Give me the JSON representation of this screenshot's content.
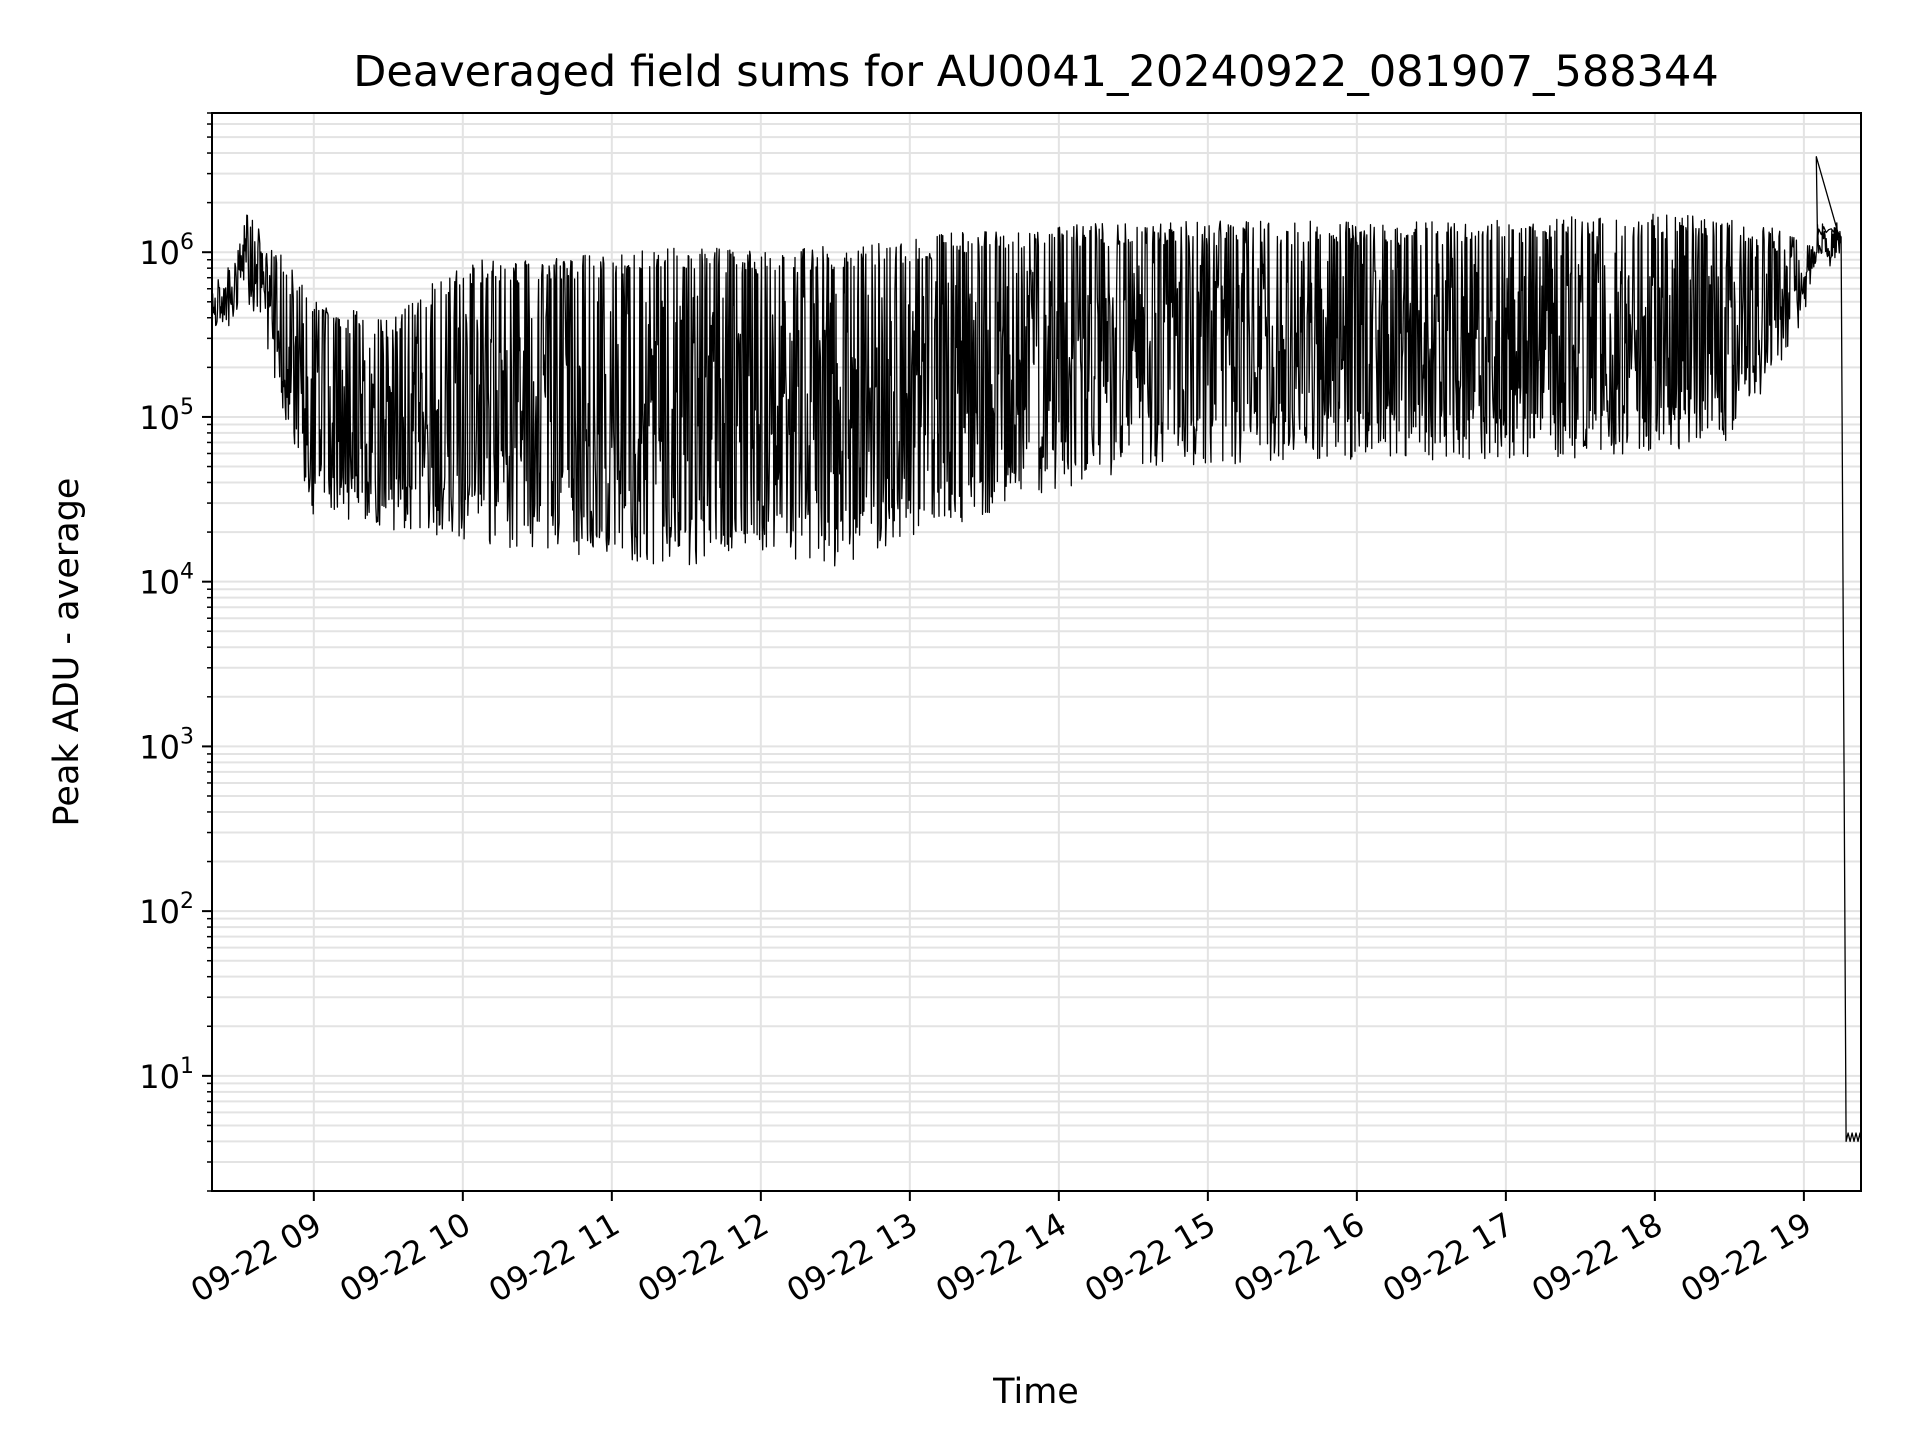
{
  "chart_data": {
    "type": "line",
    "title": "Deaveraged field sums for AU0041_20240922_081907_588344",
    "xlabel": "Time",
    "ylabel": "Peak ADU - average",
    "yscale": "log",
    "ylim": [
      2,
      7000000
    ],
    "xlim": [
      "2024-09-22 08:19",
      "2024-09-22 19:23"
    ],
    "grid": true,
    "line_color": "#000000",
    "grid_color": "#e3e3e3",
    "x_ticks": [
      {
        "t": "2024-09-22 09:00",
        "label": "09-22 09"
      },
      {
        "t": "2024-09-22 10:00",
        "label": "09-22 10"
      },
      {
        "t": "2024-09-22 11:00",
        "label": "09-22 11"
      },
      {
        "t": "2024-09-22 12:00",
        "label": "09-22 12"
      },
      {
        "t": "2024-09-22 13:00",
        "label": "09-22 13"
      },
      {
        "t": "2024-09-22 14:00",
        "label": "09-22 14"
      },
      {
        "t": "2024-09-22 15:00",
        "label": "09-22 15"
      },
      {
        "t": "2024-09-22 16:00",
        "label": "09-22 16"
      },
      {
        "t": "2024-09-22 17:00",
        "label": "09-22 17"
      },
      {
        "t": "2024-09-22 18:00",
        "label": "09-22 18"
      },
      {
        "t": "2024-09-22 19:00",
        "label": "09-22 19"
      }
    ],
    "y_ticks": [
      {
        "v": 10,
        "base": "10",
        "exp": "1"
      },
      {
        "v": 100,
        "base": "10",
        "exp": "2"
      },
      {
        "v": 1000,
        "base": "10",
        "exp": "3"
      },
      {
        "v": 10000,
        "base": "10",
        "exp": "4"
      },
      {
        "v": 100000,
        "base": "10",
        "exp": "5"
      },
      {
        "v": 1000000,
        "base": "10",
        "exp": "6"
      }
    ],
    "series": [
      {
        "envelope": [
          {
            "t": "2024-09-22 08:19",
            "low": 300000,
            "high": 600000
          },
          {
            "t": "2024-09-22 08:28",
            "low": 350000,
            "high": 1000000
          },
          {
            "t": "2024-09-22 08:33",
            "low": 500000,
            "high": 1700000
          },
          {
            "t": "2024-09-22 08:40",
            "low": 300000,
            "high": 1300000
          },
          {
            "t": "2024-09-22 08:50",
            "low": 80000,
            "high": 900000
          },
          {
            "t": "2024-09-22 09:00",
            "low": 25000,
            "high": 500000
          },
          {
            "t": "2024-09-22 09:30",
            "low": 20000,
            "high": 400000
          },
          {
            "t": "2024-09-22 10:00",
            "low": 18000,
            "high": 900000
          },
          {
            "t": "2024-09-22 10:30",
            "low": 15000,
            "high": 900000
          },
          {
            "t": "2024-09-22 11:00",
            "low": 14000,
            "high": 1000000
          },
          {
            "t": "2024-09-22 11:30",
            "low": 12000,
            "high": 1100000
          },
          {
            "t": "2024-09-22 12:00",
            "low": 15000,
            "high": 1000000
          },
          {
            "t": "2024-09-22 12:30",
            "low": 12000,
            "high": 1100000
          },
          {
            "t": "2024-09-22 13:00",
            "low": 18000,
            "high": 1200000
          },
          {
            "t": "2024-09-22 13:30",
            "low": 25000,
            "high": 1400000
          },
          {
            "t": "2024-09-22 14:00",
            "low": 35000,
            "high": 1500000
          },
          {
            "t": "2024-09-22 14:30",
            "low": 45000,
            "high": 1500000
          },
          {
            "t": "2024-09-22 15:00",
            "low": 50000,
            "high": 1550000
          },
          {
            "t": "2024-09-22 15:30",
            "low": 55000,
            "high": 1550000
          },
          {
            "t": "2024-09-22 16:00",
            "low": 55000,
            "high": 1550000
          },
          {
            "t": "2024-09-22 16:30",
            "low": 55000,
            "high": 1550000
          },
          {
            "t": "2024-09-22 17:00",
            "low": 55000,
            "high": 1600000
          },
          {
            "t": "2024-09-22 17:30",
            "low": 55000,
            "high": 1650000
          },
          {
            "t": "2024-09-22 18:00",
            "low": 60000,
            "high": 1700000
          },
          {
            "t": "2024-09-22 18:30",
            "low": 70000,
            "high": 1700000
          },
          {
            "t": "2024-09-22 18:50",
            "low": 200000,
            "high": 1400000
          },
          {
            "t": "2024-09-22 19:00",
            "low": 400000,
            "high": 1200000
          },
          {
            "t": "2024-09-22 19:05",
            "low": 700000,
            "high": 1500000
          },
          {
            "t": "2024-09-22 19:15",
            "low": 900000,
            "high": 1400000
          }
        ],
        "points": [
          {
            "t": "2024-09-22 19:05",
            "v": 3800000
          },
          {
            "t": "2024-09-22 19:17",
            "v": 4
          },
          {
            "t": "2024-09-22 19:23",
            "v": 4
          }
        ]
      }
    ]
  }
}
